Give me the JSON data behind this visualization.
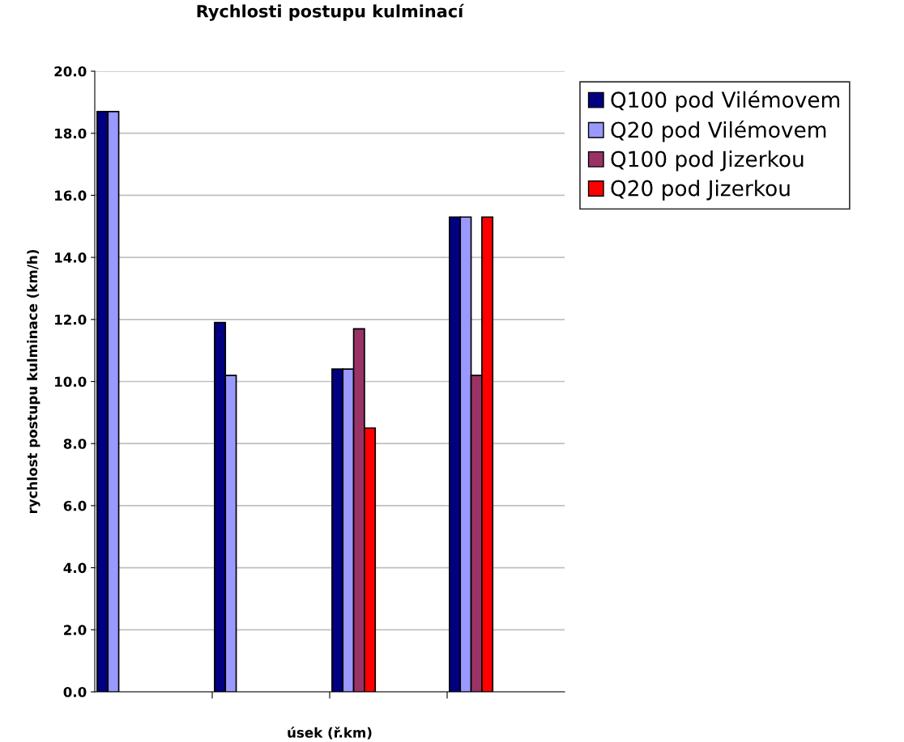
{
  "chart_data": {
    "type": "bar",
    "title": "Rychlosti postupu kulminací",
    "xlabel": "úsek (ř.km)",
    "ylabel": "rychlost postupu kulminace (km/h)",
    "categories": [
      null,
      null,
      null,
      null
    ],
    "series": [
      {
        "name": "Q100 pod Vilémovem",
        "color": "#000080",
        "values": [
          18.7,
          11.9,
          10.4,
          15.3
        ]
      },
      {
        "name": "Q20 pod Vilémovem",
        "color": "#9999ff",
        "values": [
          18.7,
          10.2,
          10.4,
          15.3
        ]
      },
      {
        "name": "Q100 pod Jizerkou",
        "color": "#993366",
        "values": [
          null,
          null,
          11.7,
          10.2
        ]
      },
      {
        "name": "Q20 pod Jizerkou",
        "color": "#ff0000",
        "values": [
          null,
          null,
          8.5,
          15.3
        ]
      }
    ],
    "ylim": [
      0,
      20
    ],
    "yticks": [
      {
        "value": 0,
        "label": "0.0"
      },
      {
        "value": 2,
        "label": "2.0"
      },
      {
        "value": 4,
        "label": "4.0"
      },
      {
        "value": 6,
        "label": "6.0"
      },
      {
        "value": 8,
        "label": "8.0"
      },
      {
        "value": 10,
        "label": "10.0"
      },
      {
        "value": 12,
        "label": "12.0"
      },
      {
        "value": 14,
        "label": "14.0"
      },
      {
        "value": 16,
        "label": "16.0"
      },
      {
        "value": 18,
        "label": "18.0"
      },
      {
        "value": 20,
        "label": "20.0"
      }
    ],
    "grid": "y",
    "legend": "top right"
  }
}
